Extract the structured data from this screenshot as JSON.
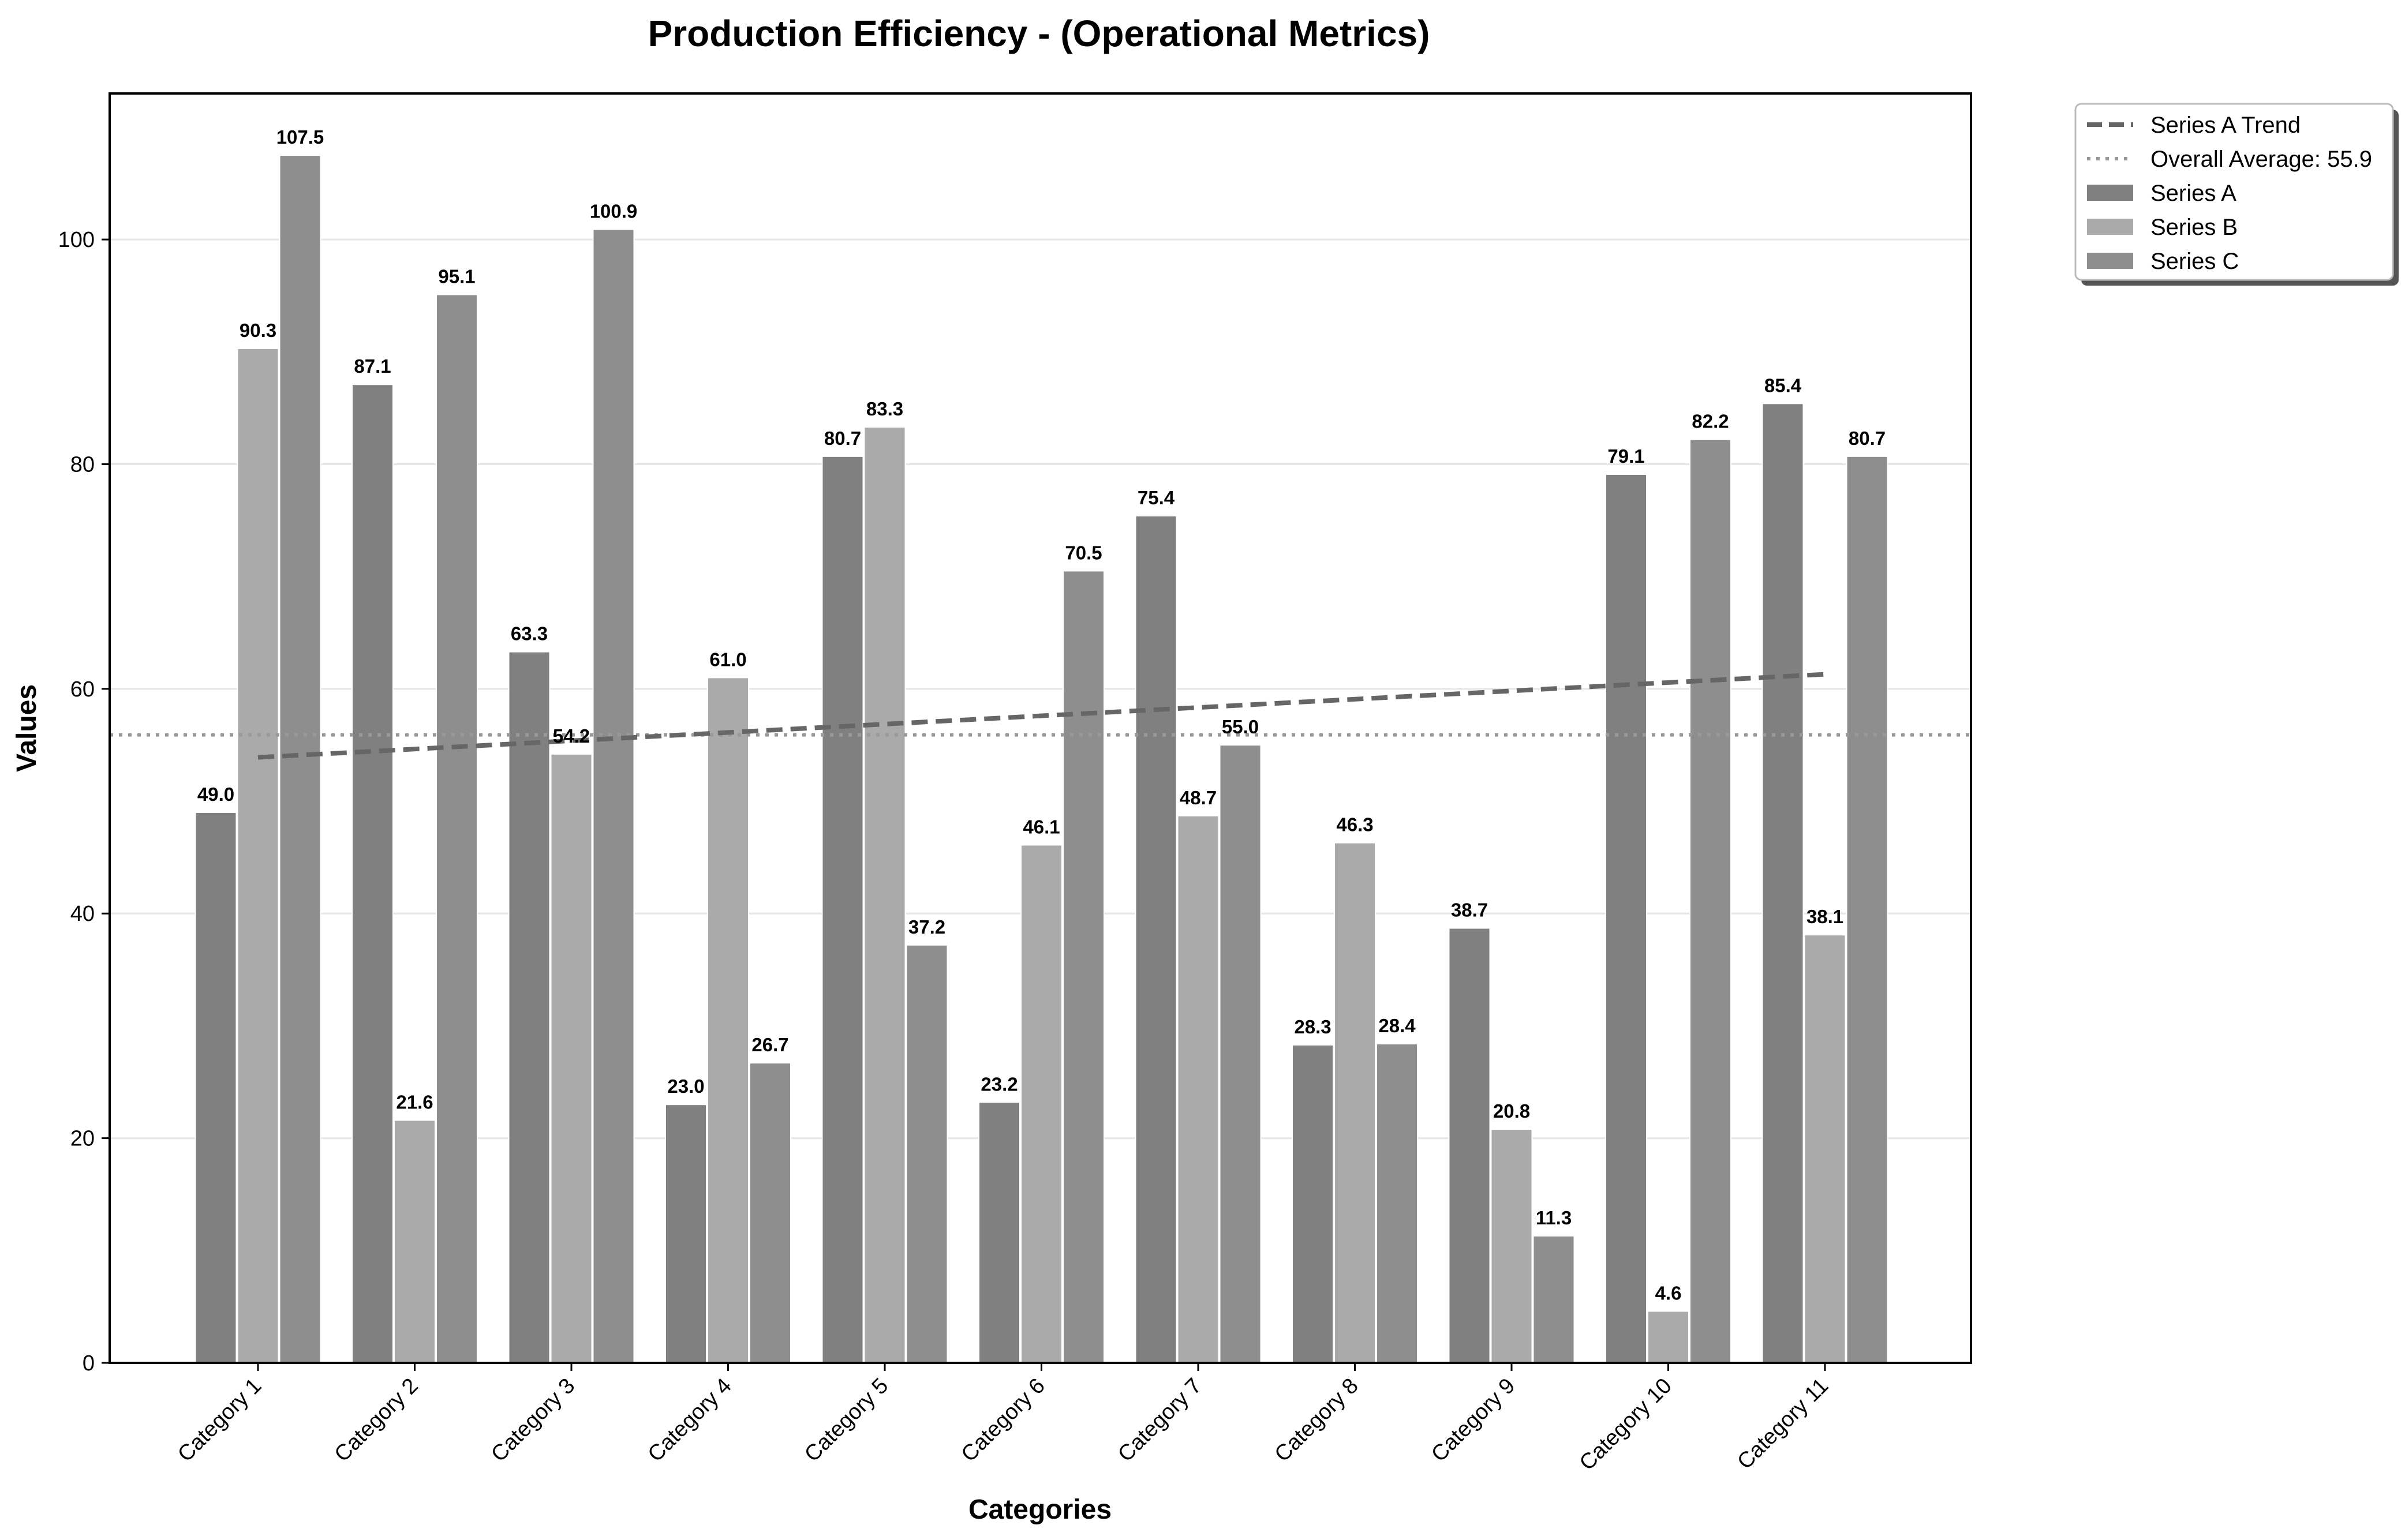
{
  "chart_data": {
    "type": "bar",
    "title": "Production Efficiency - (Operational Metrics)",
    "xlabel": "Categories",
    "ylabel": "Values",
    "ylim": [
      0,
      113
    ],
    "yticks": [
      0,
      20,
      40,
      60,
      80,
      100
    ],
    "grid": "horizontal",
    "legend_position": "outside top-right",
    "categories": [
      "Category 1",
      "Category 2",
      "Category 3",
      "Category 4",
      "Category 5",
      "Category 6",
      "Category 7",
      "Category 8",
      "Category 9",
      "Category 10",
      "Category 11"
    ],
    "series": [
      {
        "name": "Series A",
        "color": "#808080",
        "values": [
          49.0,
          87.1,
          63.3,
          23.0,
          80.7,
          23.2,
          75.4,
          28.3,
          38.7,
          79.1,
          85.4
        ]
      },
      {
        "name": "Series B",
        "color": "#aaaaaa",
        "values": [
          90.3,
          21.6,
          54.2,
          61.0,
          83.3,
          46.1,
          48.7,
          46.3,
          20.8,
          4.6,
          38.1
        ]
      },
      {
        "name": "Series C",
        "color": "#8e8e8e",
        "values": [
          107.5,
          95.1,
          100.9,
          26.7,
          37.2,
          70.5,
          55.0,
          28.4,
          11.3,
          82.2,
          80.7
        ]
      }
    ],
    "trend_line": {
      "name": "Series A Trend",
      "color": "#666666",
      "style": "dashed",
      "start": 53.9,
      "end": 61.3
    },
    "average_line": {
      "name": "Overall Average: 55.9",
      "color": "#999999",
      "style": "dotted",
      "value": 55.9
    }
  }
}
